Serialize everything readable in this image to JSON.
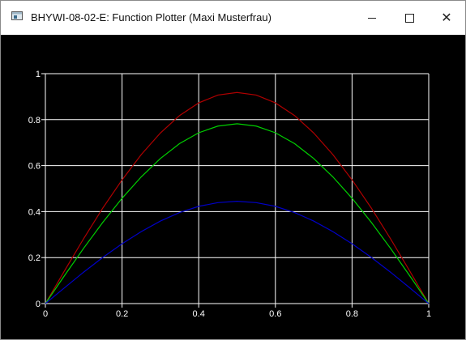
{
  "window": {
    "title": "BHYWI-08-02-E: Function Plotter (Maxi Musterfrau)",
    "icons": {
      "app": "window-app-icon",
      "minimize": "minimize-icon",
      "maximize": "maximize-icon",
      "close": "close-icon"
    },
    "close_glyph": "✕"
  },
  "colors": {
    "background": "#000000",
    "grid": "#ffffff",
    "red": "#b00000",
    "green": "#00d000",
    "blue": "#0000c8"
  },
  "chart_data": {
    "type": "line",
    "title": "",
    "xlabel": "",
    "ylabel": "",
    "xlim": [
      0,
      1
    ],
    "ylim": [
      0,
      1
    ],
    "grid": true,
    "x_ticks": [
      "0",
      "0.2",
      "0.4",
      "0.6",
      "0.8",
      "1"
    ],
    "y_ticks": [
      "0",
      "0.2",
      "0.4",
      "0.6",
      "0.8",
      "1"
    ],
    "x": [
      0,
      0.05,
      0.1,
      0.15,
      0.2,
      0.25,
      0.3,
      0.35,
      0.4,
      0.45,
      0.5,
      0.55,
      0.6,
      0.65,
      0.7,
      0.75,
      0.8,
      0.85,
      0.9,
      0.95,
      1
    ],
    "series": [
      {
        "color": "#b00000",
        "values": [
          0,
          0.143,
          0.283,
          0.416,
          0.538,
          0.648,
          0.742,
          0.818,
          0.873,
          0.907,
          0.918,
          0.907,
          0.873,
          0.818,
          0.742,
          0.648,
          0.538,
          0.416,
          0.283,
          0.143,
          0
        ]
      },
      {
        "color": "#00d000",
        "values": [
          0,
          0.122,
          0.241,
          0.354,
          0.458,
          0.551,
          0.631,
          0.696,
          0.743,
          0.772,
          0.782,
          0.772,
          0.743,
          0.696,
          0.631,
          0.551,
          0.458,
          0.354,
          0.241,
          0.122,
          0
        ]
      },
      {
        "color": "#0000c8",
        "values": [
          0,
          0.069,
          0.137,
          0.201,
          0.26,
          0.313,
          0.359,
          0.396,
          0.423,
          0.439,
          0.445,
          0.439,
          0.423,
          0.396,
          0.359,
          0.313,
          0.26,
          0.201,
          0.137,
          0.069,
          0
        ]
      }
    ]
  }
}
